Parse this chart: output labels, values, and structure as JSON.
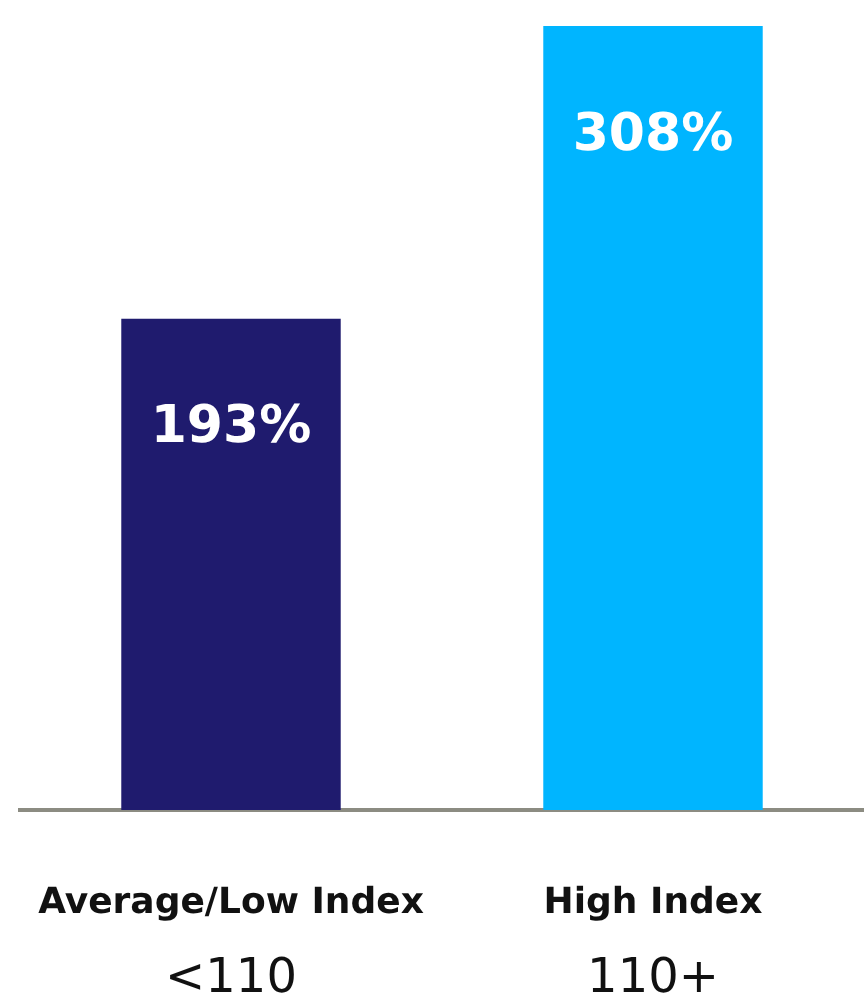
{
  "chart_data": {
    "type": "bar",
    "categories": [
      "Average/Low Index\n<110",
      "High Index\n110+"
    ],
    "values": [
      193,
      308
    ],
    "colors": [
      "#1f1b6e",
      "#00b5ff"
    ],
    "value_labels": [
      "193%",
      "308%"
    ],
    "grid": false,
    "legend": false
  }
}
